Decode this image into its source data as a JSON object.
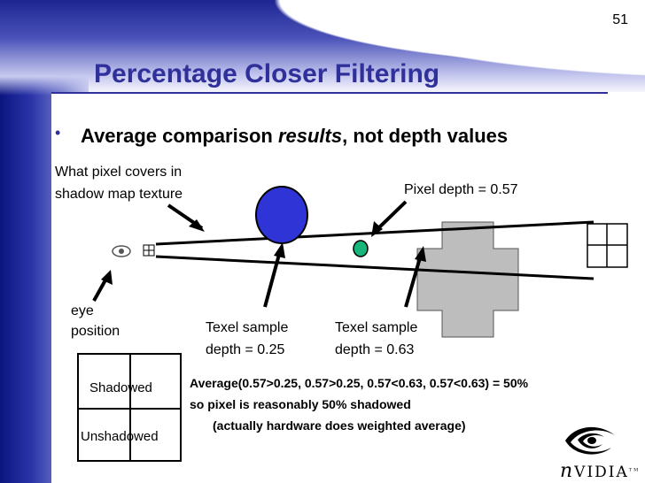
{
  "slide": {
    "number": "51",
    "title": "Percentage Closer Filtering",
    "bullet": {
      "prefix": "Average comparison ",
      "emphasis": "results",
      "suffix": ", not depth values"
    }
  },
  "diagram": {
    "label_covers_line1": "What pixel covers in",
    "label_covers_line2": "shadow map texture",
    "label_pixel_depth": "Pixel depth = 0.57",
    "label_eye_line1": "eye",
    "label_eye_line2": "position",
    "label_sample1_line1": "Texel sample",
    "label_sample1_line2": "depth = 0.25",
    "label_sample2_line1": "Texel sample",
    "label_sample2_line2": "depth = 0.63",
    "colors": {
      "occluder_blue": "#2f34d6",
      "pixel_green": "#17b57a",
      "cross_gray": "#bdbdbd"
    }
  },
  "result_table": {
    "top_label": "Shadowed",
    "bottom_label": "Unshadowed"
  },
  "explanation": {
    "line1": "Average(0.57>0.25, 0.57>0.25, 0.57<0.63, 0.57<0.63) = 50%",
    "line2": "so pixel is reasonably 50% shadowed",
    "line3": "(actually hardware does weighted average)"
  },
  "logo": {
    "text_n": "n",
    "text_rest": "VIDIA",
    "tm": "TM",
    "icon": "nvidia-eye-icon"
  }
}
